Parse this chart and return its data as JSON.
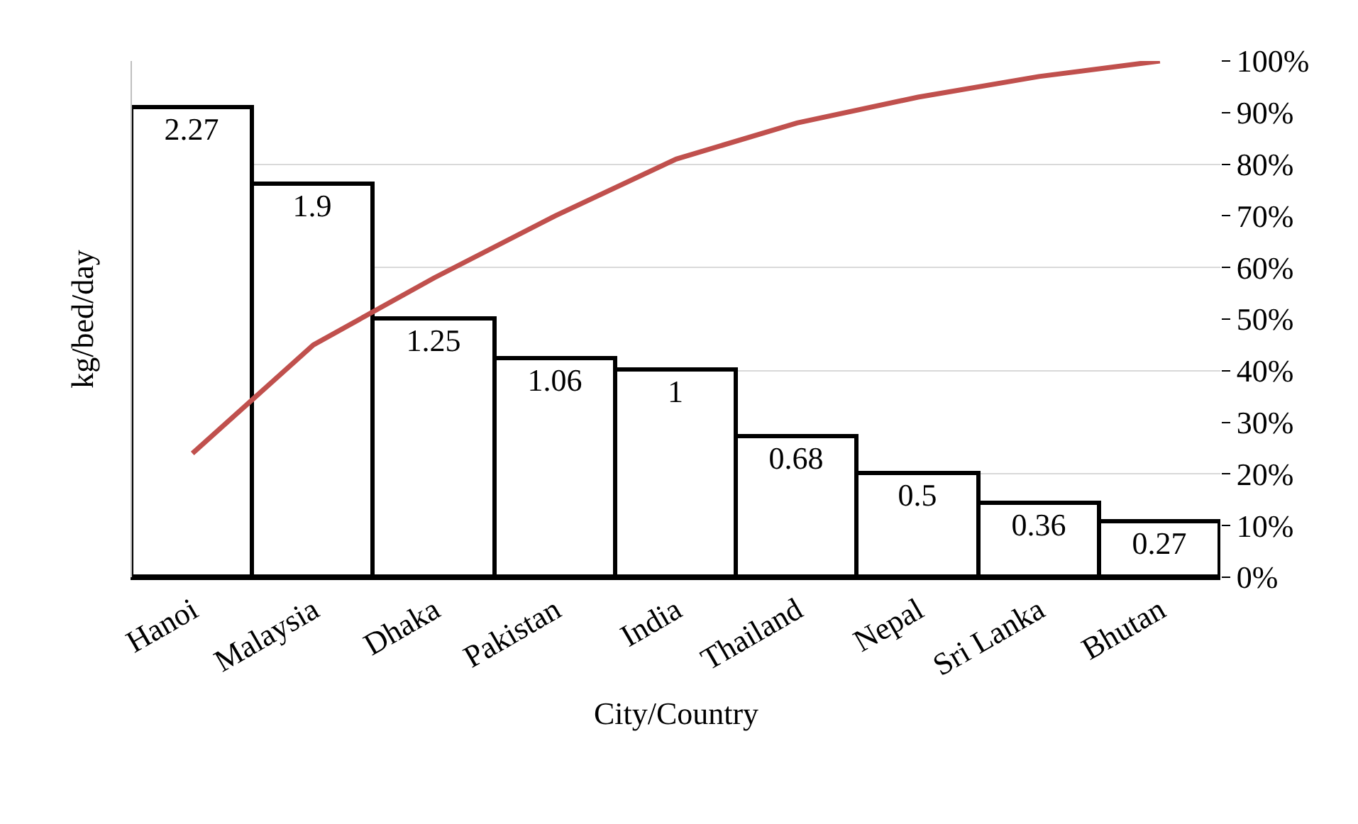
{
  "chart_data": {
    "type": "bar",
    "xlabel": "City/Country",
    "ylabel": "kg/bed/day",
    "categories": [
      "Hanoi",
      "Malaysia",
      "Dhaka",
      "Pakistan",
      "India",
      "Thailand",
      "Nepal",
      "Sri Lanka",
      "Bhutan"
    ],
    "series": [
      {
        "type": "bar",
        "color": "#ffffff",
        "values": [
          2.27,
          1.9,
          1.25,
          1.06,
          1,
          0.68,
          0.5,
          0.36,
          0.27
        ],
        "value_labels": [
          "2.27",
          "1.9",
          "1.25",
          "1.06",
          "1",
          "0.68",
          "0.5",
          "0.36",
          "0.27"
        ]
      },
      {
        "type": "line",
        "axis": "y2",
        "color": "#c0504d",
        "values": [
          24,
          45,
          58,
          70,
          81,
          88,
          93,
          97,
          100
        ]
      }
    ],
    "ylim": [
      0,
      2.5
    ],
    "yticks": [
      {
        "value": 0,
        "label": null
      },
      {
        "value": 0.5,
        "label": null
      },
      {
        "value": 1,
        "label": null
      },
      {
        "value": 1.5,
        "label": null
      },
      {
        "value": 2,
        "label": null
      },
      {
        "value": 2.5,
        "label": null
      }
    ],
    "y2lim": [
      0,
      100
    ],
    "y2ticks": [
      {
        "value": 0,
        "label": "0%"
      },
      {
        "value": 10,
        "label": "10%"
      },
      {
        "value": 20,
        "label": "20%"
      },
      {
        "value": 30,
        "label": "30%"
      },
      {
        "value": 40,
        "label": "40%"
      },
      {
        "value": 50,
        "label": "50%"
      },
      {
        "value": 60,
        "label": "60%"
      },
      {
        "value": 70,
        "label": "70%"
      },
      {
        "value": 80,
        "label": "80%"
      },
      {
        "value": 90,
        "label": "90%"
      },
      {
        "value": 100,
        "label": "100%"
      }
    ],
    "grid": "y",
    "legend": false,
    "marker": "none",
    "line_style": "solid"
  }
}
